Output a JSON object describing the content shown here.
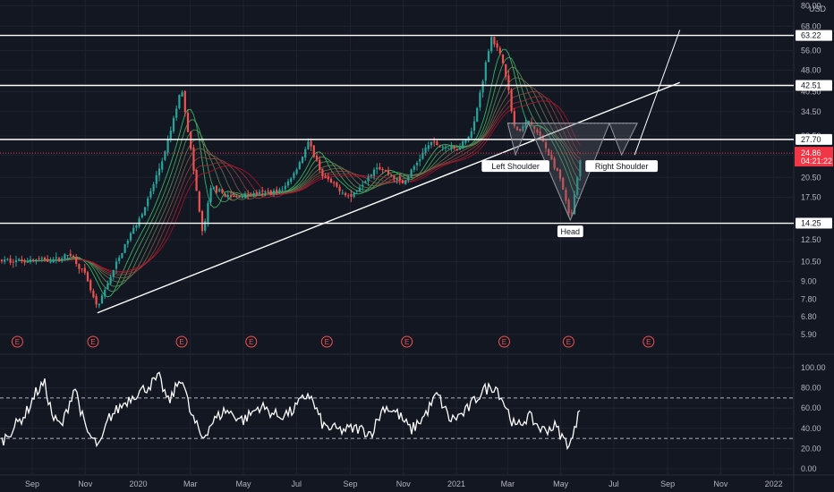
{
  "colors": {
    "background": "#131722",
    "grid": "#1f2330",
    "level_line": "#ffffff",
    "bull": "#26a69a",
    "bear": "#ef5350",
    "last_price": "#f23645",
    "ribbon_start": "#b7102a",
    "ribbon_end": "#3bd16f",
    "pattern_fill": "#5d606b"
  },
  "currency": "USD",
  "chart_data": [
    {
      "type": "candlestick",
      "title": "",
      "scale": "log",
      "ylim": [
        5.6,
        80
      ],
      "y_tick_labels": [
        "80.00",
        "68.00",
        "56.00",
        "48.00",
        "40.50",
        "34.50",
        "28.50",
        "24.50",
        "20.50",
        "17.50",
        "14.25",
        "12.50",
        "10.50",
        "9.00",
        "7.80",
        "6.80",
        "5.90"
      ],
      "x_tick_labels": [
        "Sep",
        "Nov",
        "2020",
        "Mar",
        "May",
        "Jul",
        "Sep",
        "Nov",
        "2021",
        "Mar",
        "May",
        "Jul",
        "Sep",
        "Nov",
        "2022"
      ],
      "price_path": [
        {
          "date": "2019-08-15",
          "price": 10.6
        },
        {
          "date": "2019-10-01",
          "price": 10.7
        },
        {
          "date": "2019-10-15",
          "price": 11.2
        },
        {
          "date": "2019-11-01",
          "price": 9.4
        },
        {
          "date": "2019-11-15",
          "price": 7.2
        },
        {
          "date": "2019-12-01",
          "price": 9.5
        },
        {
          "date": "2019-12-20",
          "price": 12.5
        },
        {
          "date": "2020-01-10",
          "price": 16.5
        },
        {
          "date": "2020-02-01",
          "price": 25.0
        },
        {
          "date": "2020-02-20",
          "price": 42.0
        },
        {
          "date": "2020-03-01",
          "price": 26.0
        },
        {
          "date": "2020-03-15",
          "price": 13.0
        },
        {
          "date": "2020-03-25",
          "price": 19.0
        },
        {
          "date": "2020-04-15",
          "price": 17.5
        },
        {
          "date": "2020-05-15",
          "price": 18.0
        },
        {
          "date": "2020-06-15",
          "price": 18.5
        },
        {
          "date": "2020-07-01",
          "price": 22.0
        },
        {
          "date": "2020-07-15",
          "price": 27.0
        },
        {
          "date": "2020-08-01",
          "price": 20.5
        },
        {
          "date": "2020-09-01",
          "price": 17.5
        },
        {
          "date": "2020-10-01",
          "price": 22.5
        },
        {
          "date": "2020-11-01",
          "price": 19.5
        },
        {
          "date": "2020-12-01",
          "price": 27.0
        },
        {
          "date": "2021-01-01",
          "price": 25.5
        },
        {
          "date": "2021-01-20",
          "price": 30.0
        },
        {
          "date": "2021-02-10",
          "price": 63.0
        },
        {
          "date": "2021-02-25",
          "price": 50.0
        },
        {
          "date": "2021-03-10",
          "price": 29.0
        },
        {
          "date": "2021-03-25",
          "price": 32.0
        },
        {
          "date": "2021-04-10",
          "price": 27.5
        },
        {
          "date": "2021-05-01",
          "price": 20.0
        },
        {
          "date": "2021-05-12",
          "price": 14.5
        },
        {
          "date": "2021-05-25",
          "price": 24.86
        }
      ],
      "levels": [
        {
          "price": 63.22,
          "label": "63.22"
        },
        {
          "price": 42.51,
          "label": "42.51"
        },
        {
          "price": 27.7,
          "label": "27.70"
        },
        {
          "price": 14.25,
          "label": "14.25"
        }
      ],
      "last_price": {
        "value": "24.86",
        "countdown": "04:21:22"
      },
      "trendline": {
        "from": {
          "date": "2019-11-15",
          "price": 7.0
        },
        "to": {
          "date": "2021-09-15",
          "price": 43.5
        }
      },
      "projection_line": {
        "from": {
          "date": "2021-07-25",
          "price": 24.5
        },
        "to": {
          "date": "2021-09-15",
          "price": 66.0
        }
      },
      "pattern": {
        "points": [
          {
            "date": "2021-03-01",
            "price": 31.5
          },
          {
            "date": "2021-03-10",
            "price": 24.5
          },
          {
            "date": "2021-03-25",
            "price": 31.5
          },
          {
            "date": "2021-05-12",
            "price": 14.6
          },
          {
            "date": "2021-06-26",
            "price": 31.5
          },
          {
            "date": "2021-07-10",
            "price": 24.5
          },
          {
            "date": "2021-07-28",
            "price": 31.5
          }
        ],
        "labels": [
          {
            "text": "Left Shoulder",
            "date": "2021-03-10",
            "price": 24.5
          },
          {
            "text": "Head",
            "date": "2021-05-12",
            "price": 14.6
          },
          {
            "text": "Right Shoulder",
            "date": "2021-07-10",
            "price": 24.5
          }
        ]
      },
      "earnings_marker": "E",
      "earnings_dates": [
        "2019-08-15",
        "2019-11-10",
        "2020-02-20",
        "2020-05-10",
        "2020-08-05",
        "2020-11-05",
        "2021-02-25",
        "2021-05-10",
        "2021-08-10"
      ]
    },
    {
      "type": "line",
      "title": "",
      "ylim": [
        0,
        100
      ],
      "y_tick_labels": [
        "100.00",
        "80.00",
        "60.00",
        "40.00",
        "20.00",
        "0.00"
      ],
      "bands": [
        70,
        30
      ],
      "points": [
        {
          "date": "2019-08-15",
          "value": 45
        },
        {
          "date": "2019-08-25",
          "value": 55
        },
        {
          "date": "2019-09-05",
          "value": 75
        },
        {
          "date": "2019-09-15",
          "value": 85
        },
        {
          "date": "2019-09-25",
          "value": 50
        },
        {
          "date": "2019-10-05",
          "value": 42
        },
        {
          "date": "2019-10-20",
          "value": 82
        },
        {
          "date": "2019-11-01",
          "value": 40
        },
        {
          "date": "2019-11-10",
          "value": 28
        },
        {
          "date": "2019-11-18",
          "value": 22
        },
        {
          "date": "2019-11-28",
          "value": 50
        },
        {
          "date": "2019-12-10",
          "value": 60
        },
        {
          "date": "2019-12-25",
          "value": 72
        },
        {
          "date": "2020-01-10",
          "value": 80
        },
        {
          "date": "2020-01-25",
          "value": 90
        },
        {
          "date": "2020-02-05",
          "value": 65
        },
        {
          "date": "2020-02-20",
          "value": 92
        },
        {
          "date": "2020-03-01",
          "value": 55
        },
        {
          "date": "2020-03-15",
          "value": 30
        },
        {
          "date": "2020-03-25",
          "value": 45
        },
        {
          "date": "2020-04-10",
          "value": 58
        },
        {
          "date": "2020-05-01",
          "value": 48
        },
        {
          "date": "2020-05-20",
          "value": 62
        },
        {
          "date": "2020-06-10",
          "value": 52
        },
        {
          "date": "2020-06-25",
          "value": 56
        },
        {
          "date": "2020-07-15",
          "value": 75
        },
        {
          "date": "2020-08-01",
          "value": 42
        },
        {
          "date": "2020-08-20",
          "value": 38
        },
        {
          "date": "2020-09-10",
          "value": 40
        },
        {
          "date": "2020-09-25",
          "value": 35
        },
        {
          "date": "2020-10-10",
          "value": 62
        },
        {
          "date": "2020-10-25",
          "value": 55
        },
        {
          "date": "2020-11-10",
          "value": 38
        },
        {
          "date": "2020-11-25",
          "value": 52
        },
        {
          "date": "2020-12-10",
          "value": 74
        },
        {
          "date": "2020-12-25",
          "value": 48
        },
        {
          "date": "2021-01-10",
          "value": 55
        },
        {
          "date": "2021-02-01",
          "value": 78
        },
        {
          "date": "2021-02-15",
          "value": 82
        },
        {
          "date": "2021-02-25",
          "value": 65
        },
        {
          "date": "2021-03-10",
          "value": 40
        },
        {
          "date": "2021-03-25",
          "value": 52
        },
        {
          "date": "2021-04-10",
          "value": 38
        },
        {
          "date": "2021-04-25",
          "value": 42
        },
        {
          "date": "2021-05-05",
          "value": 28
        },
        {
          "date": "2021-05-12",
          "value": 24
        },
        {
          "date": "2021-05-18",
          "value": 40
        },
        {
          "date": "2021-05-22",
          "value": 65
        },
        {
          "date": "2021-05-25",
          "value": 60
        }
      ]
    }
  ]
}
